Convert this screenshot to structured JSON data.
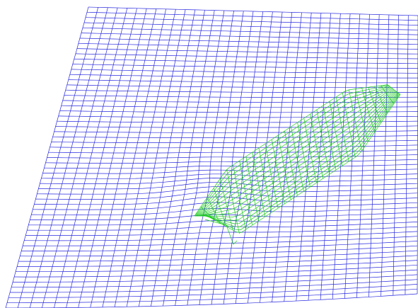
{
  "scene": {
    "background": "#ffffff",
    "free_surface": {
      "color": "#2a2adf",
      "rows": 58,
      "cols": 34
    },
    "hull": {
      "color": "#19cc19",
      "stations": 30,
      "waterlines": 16
    }
  }
}
